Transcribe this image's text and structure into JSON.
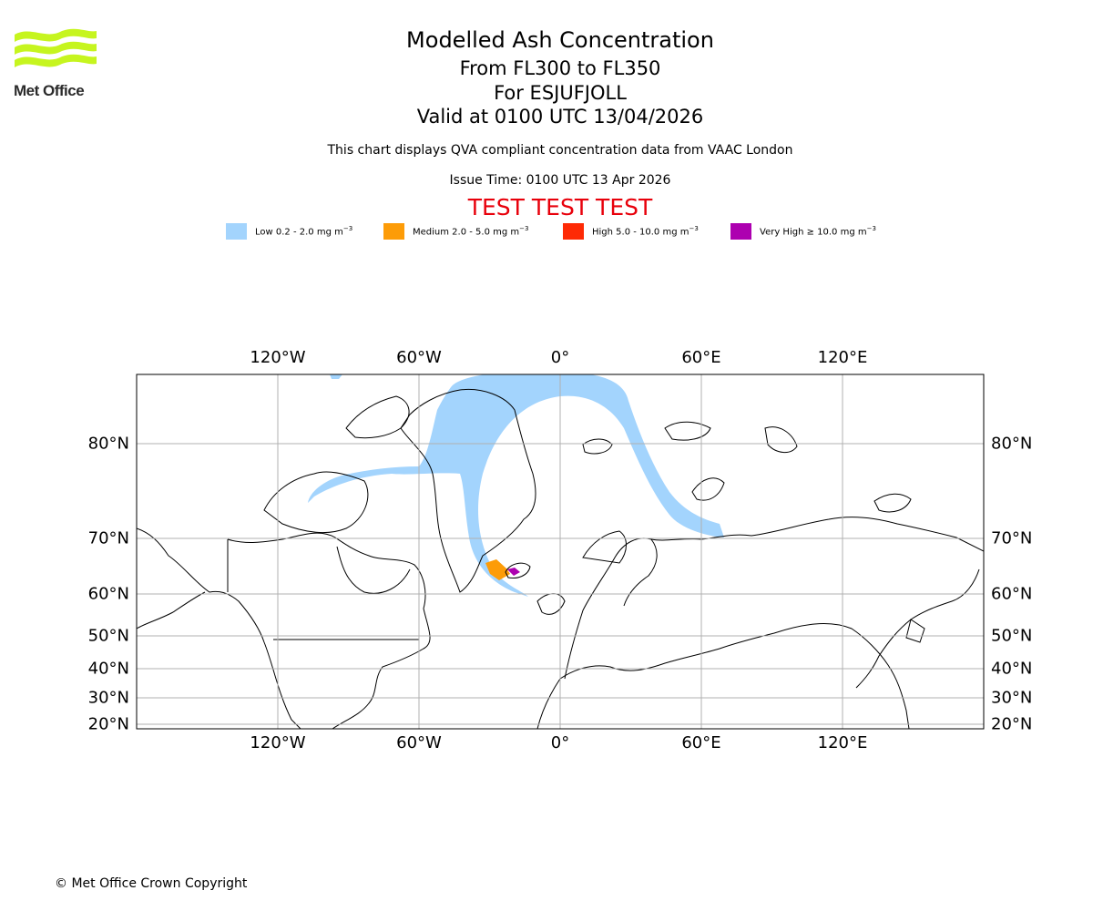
{
  "header": {
    "logo_text": "Met Office",
    "title": "Modelled Ash Concentration",
    "flight_levels": "From FL300 to FL350",
    "for_label": "For ESJUFJOLL",
    "valid_time": "Valid at 0100 UTC 13/04/2026",
    "compliance_note": "This chart displays QVA compliant concentration data from VAAC London",
    "issue_time": "Issue Time: 0100 UTC 13 Apr 2026",
    "test_banner": "TEST TEST TEST"
  },
  "legend": [
    {
      "label": "Low 0.2 - 2.0 mg m",
      "exp": "−3",
      "color": "#a3d4fd"
    },
    {
      "label": "Medium 2.0 - 5.0 mg m",
      "exp": "−3",
      "color": "#fd9c08"
    },
    {
      "label": "High 5.0 - 10.0 mg m",
      "exp": "−3",
      "color": "#fe2a05"
    },
    {
      "label": "Very High  ≥  10.0 mg m",
      "exp": "−3",
      "color": "#ad00b0"
    }
  ],
  "map": {
    "longitude_labels": [
      "120°W",
      "60°W",
      "0°",
      "60°E",
      "120°E"
    ],
    "latitude_labels": [
      "80°N",
      "70°N",
      "60°N",
      "50°N",
      "40°N",
      "30°N",
      "20°N"
    ],
    "colors": {
      "grid": "#b0b0b0",
      "coastline": "#000000"
    }
  },
  "footer": {
    "copyright": "© Met Office Crown Copyright"
  }
}
